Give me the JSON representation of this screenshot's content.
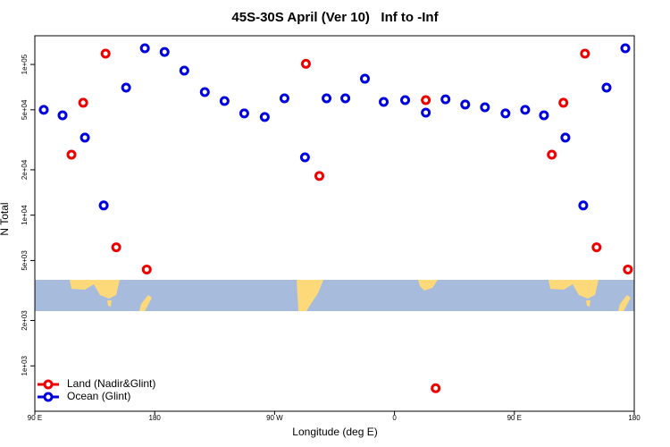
{
  "chart_data": {
    "type": "scatter",
    "title": "45S-30S April (Ver 10)   Inf to -Inf",
    "x_label": "Longitude (deg E)",
    "y_label": "N Total",
    "log_y": true,
    "legend_position": "bottom-left",
    "xlim": [
      90,
      540
    ],
    "xticks": [
      {
        "value": 90,
        "label": "90 E"
      },
      {
        "value": 180,
        "label": "180"
      },
      {
        "value": 270,
        "label": "90 W"
      },
      {
        "value": 360,
        "label": "0"
      },
      {
        "value": 450,
        "label": "90 E"
      },
      {
        "value": 540,
        "label": "180"
      }
    ],
    "ylim": [
      500,
      155000
    ],
    "yticks": [
      {
        "value": 1000,
        "label": "1e+03"
      },
      {
        "value": 2000,
        "label": "2e+03"
      },
      {
        "value": 5000,
        "label": "5e+03"
      },
      {
        "value": 10000,
        "label": "1e+04"
      },
      {
        "value": 20000,
        "label": "2e+04"
      },
      {
        "value": 50000,
        "label": "5e+04"
      },
      {
        "value": 100000,
        "label": "1e+05"
      }
    ],
    "series": [
      {
        "name": "Land (Nadir&Glint)",
        "color": "#ee0000",
        "x": [
          117.5,
          126.3,
          143.1,
          151.1,
          174.0,
          293.5,
          303.6,
          383.5,
          390.9,
          478.1,
          486.8,
          503.0,
          511.7,
          535.2
        ],
        "values": [
          25200,
          55700,
          118000,
          6120,
          4360,
          101000,
          18200,
          58000,
          711,
          25200,
          55700,
          118000,
          6120,
          4360
        ]
      },
      {
        "name": "Ocean (Glint)",
        "color": "#0000dd",
        "x": [
          96.7,
          110.8,
          127.6,
          141.7,
          158.5,
          172.6,
          187.4,
          202.2,
          217.6,
          232.4,
          247.2,
          262.6,
          277.4,
          292.8,
          309.0,
          323.1,
          337.8,
          351.9,
          368.0,
          383.5,
          398.3,
          413.1,
          427.9,
          443.3,
          458.1,
          472.2,
          488.3,
          501.7,
          519.2,
          533.3
        ],
        "values": [
          50000,
          46000,
          32700,
          11600,
          70200,
          128000,
          121000,
          91000,
          65600,
          57200,
          47300,
          44800,
          59600,
          24200,
          59600,
          59600,
          80400,
          56400,
          58000,
          47900,
          58700,
          54200,
          52000,
          47300,
          50000,
          46000,
          32700,
          11600,
          70200,
          128000
        ]
      }
    ]
  }
}
